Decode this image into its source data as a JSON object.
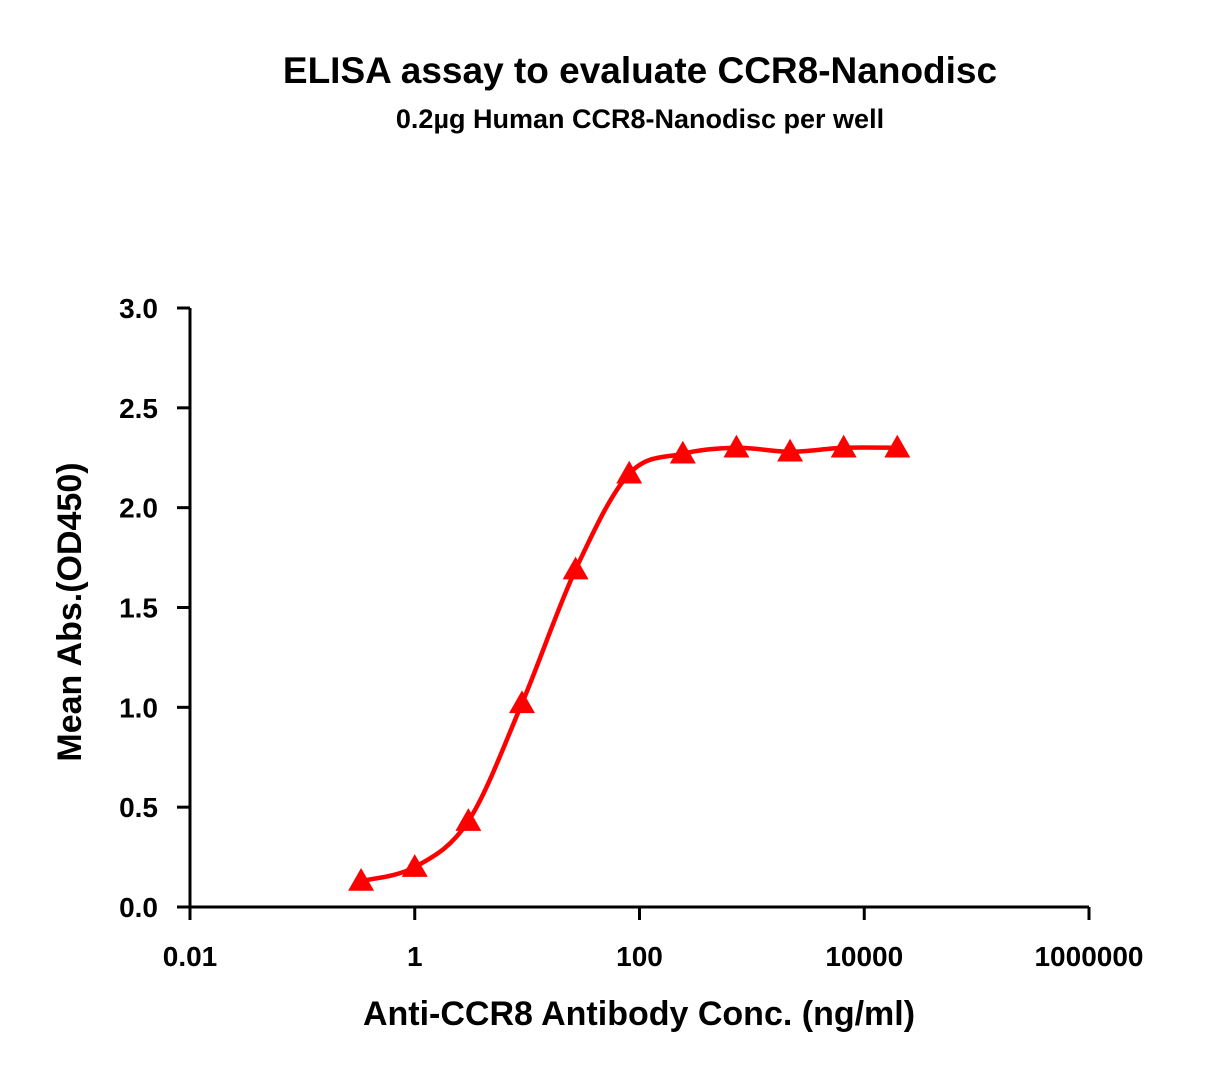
{
  "chart_data": {
    "type": "line",
    "title": "ELISA assay to evaluate CCR8-Nanodisc",
    "subtitle": "0.2µg Human CCR8-Nanodisc per well",
    "xlabel": "Anti-CCR8 Antibody Conc. (ng/ml)",
    "ylabel": "Mean Abs.(OD450)",
    "xscale": "log",
    "xlim": [
      0.01,
      1000000
    ],
    "ylim": [
      0,
      3.0
    ],
    "xticks": [
      0.01,
      1,
      100,
      10000,
      1000000
    ],
    "xtick_labels": [
      "0.01",
      "1",
      "100",
      "10000",
      "1000000"
    ],
    "yticks": [
      0,
      0.5,
      1.0,
      1.5,
      2.0,
      2.5,
      3.0
    ],
    "ytick_labels": [
      "0.0",
      "0.5",
      "1.0",
      "1.5",
      "2.0",
      "2.5",
      "3.0"
    ],
    "grid": false,
    "legend": "none",
    "series": [
      {
        "marker": "triangle",
        "color": "#ff0000",
        "x": [
          0.333,
          1,
          3,
          9,
          27,
          81,
          243,
          729,
          2187,
          6561,
          19683
        ],
        "y": [
          0.13,
          0.2,
          0.43,
          1.02,
          1.69,
          2.17,
          2.27,
          2.3,
          2.28,
          2.3,
          2.3
        ]
      }
    ]
  }
}
